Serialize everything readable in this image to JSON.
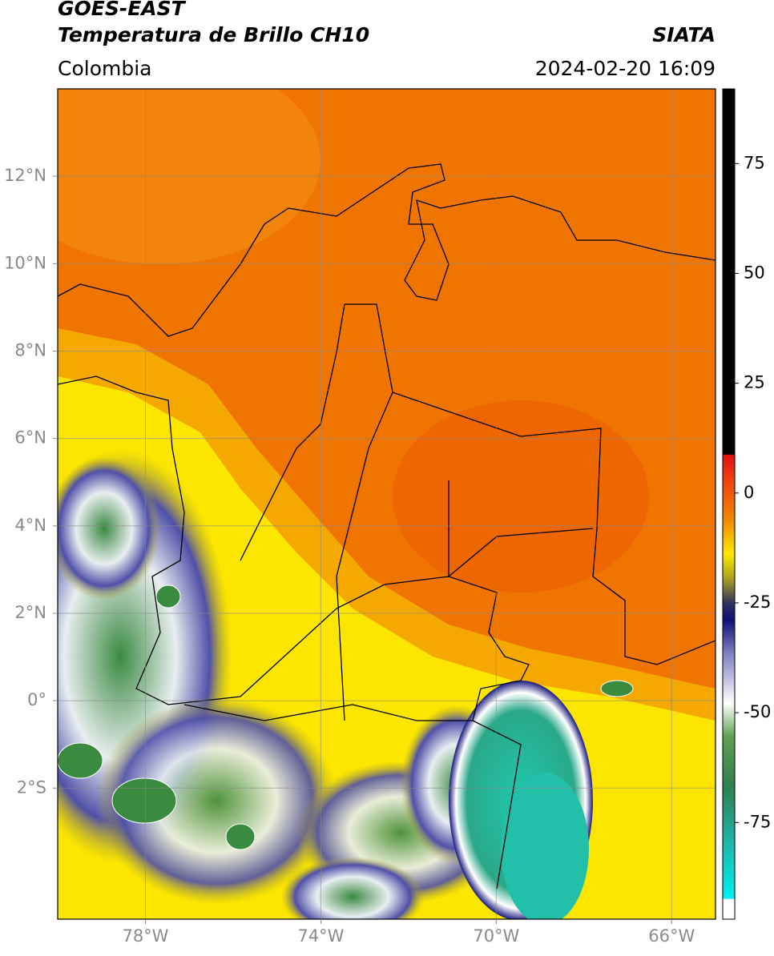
{
  "header": {
    "line1": "GOES-EAST",
    "line2": "Temperatura de Brillo CH10",
    "source": "SIATA",
    "region": "Colombia",
    "datetime": "2024-02-20 16:09"
  },
  "map": {
    "lon_lim": [
      -80,
      -65
    ],
    "lat_lim": [
      -5,
      14
    ],
    "lon_ticks": [
      {
        "value": -78,
        "label": "78°W"
      },
      {
        "value": -74,
        "label": "74°W"
      },
      {
        "value": -70,
        "label": "70°W"
      },
      {
        "value": -66,
        "label": "66°W"
      }
    ],
    "lat_ticks": [
      {
        "value": 12,
        "label": "12°N"
      },
      {
        "value": 10,
        "label": "10°N"
      },
      {
        "value": 8,
        "label": "8°N"
      },
      {
        "value": 6,
        "label": "6°N"
      },
      {
        "value": 4,
        "label": "4°N"
      },
      {
        "value": 2,
        "label": "2°N"
      },
      {
        "value": 0,
        "label": "0°"
      },
      {
        "value": -2,
        "label": "2°S"
      }
    ],
    "grid": true
  },
  "colorbar": {
    "lim": [
      -97,
      92
    ],
    "ticks": [
      75,
      50,
      25,
      0,
      -25,
      -50,
      -75
    ]
  }
}
